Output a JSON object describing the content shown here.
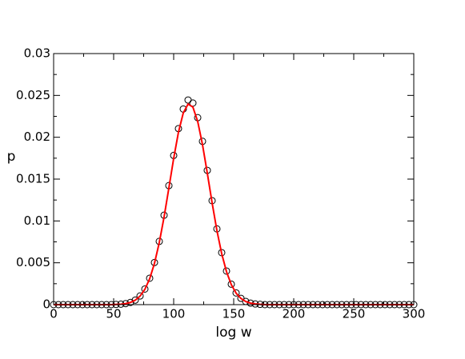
{
  "chart_data": {
    "type": "line",
    "xlabel": "log w",
    "ylabel": "p",
    "xlim": [
      0,
      300
    ],
    "xticks": [
      0,
      50,
      100,
      150,
      200,
      250,
      300
    ],
    "ylim": [
      0,
      0.03
    ],
    "yticks": [
      0,
      0.005,
      0.01,
      0.015,
      0.02,
      0.025,
      0.03
    ],
    "x": [
      0,
      4,
      8,
      12,
      16,
      20,
      24,
      28,
      32,
      36,
      40,
      44,
      48,
      52,
      56,
      60,
      64,
      68,
      72,
      76,
      80,
      84,
      88,
      92,
      96,
      100,
      104,
      108,
      112,
      116,
      120,
      124,
      128,
      132,
      136,
      140,
      144,
      148,
      152,
      156,
      160,
      164,
      168,
      172,
      176,
      180,
      184,
      188,
      192,
      196,
      200,
      204,
      208,
      212,
      216,
      220,
      224,
      228,
      232,
      236,
      240,
      244,
      248,
      252,
      256,
      260,
      264,
      268,
      272,
      276,
      280,
      284,
      288,
      292,
      296,
      300
    ],
    "series": [
      {
        "color": "#000000",
        "style": "marker",
        "values": [
          0,
          0,
          0,
          0,
          0,
          0,
          0,
          0,
          0,
          0,
          0,
          0,
          0,
          2.2e-05,
          5.4e-05,
          0.000124,
          0.000267,
          0.000542,
          0.001036,
          0.001864,
          0.003156,
          0.005032,
          0.007559,
          0.010684,
          0.014222,
          0.017826,
          0.021036,
          0.023375,
          0.024451,
          0.024088,
          0.022342,
          0.019512,
          0.016043,
          0.012422,
          0.009053,
          0.006213,
          0.004016,
          0.002443,
          0.0014,
          0.000756,
          0.000384,
          0.000184,
          8.3e-05,
          3.5e-05,
          0,
          0,
          0,
          0,
          0,
          0,
          0,
          0,
          0,
          0,
          0,
          0,
          0,
          0,
          0,
          0,
          0,
          0,
          0,
          0,
          0,
          0,
          0,
          0,
          0,
          0,
          0,
          0,
          0,
          0,
          0,
          0
        ]
      },
      {
        "color": "#ff0000",
        "style": "line",
        "values": [
          0,
          0,
          0,
          0,
          0,
          0,
          0,
          0,
          0,
          0,
          0,
          0,
          0,
          2.2e-05,
          5.3e-05,
          0.000122,
          0.000262,
          0.000531,
          0.001015,
          0.001827,
          0.003093,
          0.004931,
          0.007408,
          0.01047,
          0.013938,
          0.01747,
          0.020615,
          0.022908,
          0.023962,
          0.023606,
          0.021895,
          0.019122,
          0.015722,
          0.012174,
          0.008872,
          0.006089,
          0.003936,
          0.002394,
          0.001372,
          0.000741,
          0.000376,
          0.00018,
          8.1e-05,
          3.4e-05,
          0,
          0,
          0,
          0,
          0,
          0,
          0,
          0,
          0,
          0,
          0,
          0,
          0,
          0,
          0,
          0,
          0,
          0,
          0,
          0,
          0,
          0,
          0,
          0,
          0,
          0,
          0,
          0,
          0,
          0,
          0,
          0
        ]
      }
    ]
  }
}
